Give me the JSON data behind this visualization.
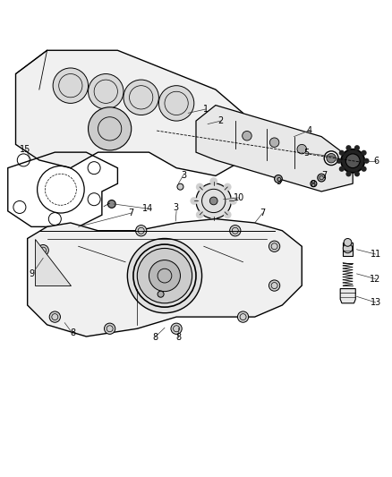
{
  "background_color": "#ffffff",
  "line_color": "#000000",
  "fig_width": 4.38,
  "fig_height": 5.33,
  "dpi": 100
}
